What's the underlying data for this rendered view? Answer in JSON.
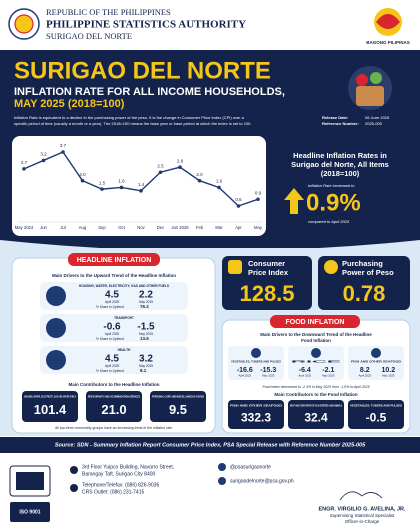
{
  "header": {
    "country": "REPUBLIC OF THE PHILIPPINES",
    "agency": "PHILIPPINE STATISTICS AUTHORITY",
    "office": "SURIGAO DEL NORTE",
    "logo_text": "BAGONG PILIPINAS"
  },
  "title": {
    "province": "SURIGAO DEL NORTE",
    "line1": "INFLATION RATE FOR ALL INCOME HOUSEHOLDS,",
    "line2": "MAY 2025 (2018=100)"
  },
  "definition": {
    "line1": "Inflation Rate is equivalent to a decline in the purchasing power of the peso. It is the change in Consumer Price Index (CPI) over a",
    "line2": "specific period of time (usually a month or a year). The 2018=100 means the base year or base period at which the index is set to 100."
  },
  "release": {
    "date_label": "Release Date:",
    "date": "06 June 2025",
    "ref_label": "Reference Number:",
    "ref": "2025-009"
  },
  "chart_data": {
    "type": "line",
    "title": "Headline Inflation Rates in Surigao del Norte, All Items (2018=100)",
    "categories": [
      "May 2024",
      "Jun",
      "Jul",
      "Aug",
      "Sep",
      "Oct",
      "Nov",
      "Dec",
      "Jan 2025",
      "Feb",
      "Mar",
      "Apr",
      "May"
    ],
    "values": [
      2.7,
      3.2,
      3.7,
      2.0,
      1.5,
      1.6,
      1.4,
      2.5,
      2.8,
      2.0,
      1.6,
      0.5,
      0.9
    ],
    "value_labels": [
      "2.7",
      "3.2",
      "3.7",
      "2.0",
      "1.5",
      "1.6",
      "1.4",
      "2.5",
      "2.8",
      "2.0",
      "1.6",
      "0.5",
      "0.9"
    ],
    "color": "#1f3b73"
  },
  "headline_summary": {
    "title1": "Headline Inflation Rates in",
    "title2": "Surigao del Norte, All Items",
    "title3": "(2018=100)",
    "lead": "Inflation Rate increased to",
    "value": "0.9%",
    "note": "compared to April 2025"
  },
  "headline_section": {
    "tab": "HEADLINE INFLATION",
    "drivers_title": "Main Drivers to the Upward Trend of the Headline Inflation",
    "period_labels": [
      "April 2025",
      "May 2025"
    ],
    "share_label": "% Share to Uptrend",
    "drivers": [
      {
        "name": "HOUSING, WATER, ELECTRICITY, GAS AND OTHER FUELS",
        "april": "4.5",
        "may": "2.2",
        "share": "76.2"
      },
      {
        "name": "TRANSPORT",
        "april": "-0.6",
        "may": "-1.5",
        "share": "13.6"
      },
      {
        "name": "HEALTH",
        "april": "4.5",
        "may": "3.2",
        "share": "8.1"
      }
    ],
    "contributors_title": "Main Contributors to the Headline Inflation",
    "contributors": [
      {
        "name": "HOUSING, WATER, ELECTRICITY, GAS AND OTHER FUELS",
        "value": "101.4"
      },
      {
        "name": "RESTAURANTS AND ACCOMMODATION SERVICES",
        "value": "21.0"
      },
      {
        "name": "PERSONAL CARE AND MISCELLANEOUS GOODS",
        "value": "9.5"
      }
    ],
    "note": "All top three commodity groups have an increasing trend in the inflation rate."
  },
  "indices": {
    "cpi_label1": "Consumer",
    "cpi_label2": "Price Index",
    "cpi": "128.5",
    "ppp_label1": "Purchasing",
    "ppp_label2": "Power of Peso",
    "ppp": "0.78"
  },
  "food_section": {
    "tab": "FOOD INFLATION",
    "drivers_title": "Main Drivers to the Downward Trend of the Headline",
    "drivers_title2": "Food Inflation",
    "period_labels": [
      "April 2025",
      "May 2025"
    ],
    "drivers": [
      {
        "name": "VEGETABLES, TUBERS AND PULSES",
        "april": "-16.6",
        "may": "-15.3"
      },
      {
        "name": "RICE",
        "april": "-6.4",
        "may": "-2.1"
      },
      {
        "name": "FISH AND OTHER SEAFOOD",
        "april": "8.2",
        "may": "10.2"
      }
    ],
    "note": "Food index decreased to -2.3% in May 2025 from -1.0% in April 2025",
    "contributors_title": "Main Contributors to the Food Inflation",
    "contributors": [
      {
        "name": "FISH AND OTHER SEAFOOD",
        "value": "332.3"
      },
      {
        "name": "MEAT AND OTHER PARTS OF SLAUGHTERED LAND ANIMALS",
        "value": "32.4"
      },
      {
        "name": "VEGETABLES, TUBERS AND PULSES",
        "value": "-0.5"
      }
    ]
  },
  "source": "Source: SDN - Summary Inflation Report Consumer Price Index, PSA Special Release with Reference Number 2025-005",
  "footer": {
    "address1": "3rd Floor Yuipco Building, Navarro Street,",
    "address2": "Barangay Taft, Surigao City 8400",
    "phone": "Telephone/Telefax: (086) 826-9036",
    "crs": "CRS Outlet: (086) 231-7415",
    "facebook": "@psasurigaonorte",
    "email": "surigaodelnorte@psa.gov.ph",
    "iso": "ISO 9001",
    "officer": "ENGR. VIRGILIO G. AVELINA, JR.",
    "position": "Supervising Statistical Specialist",
    "role": "Officer-in-Charge"
  }
}
